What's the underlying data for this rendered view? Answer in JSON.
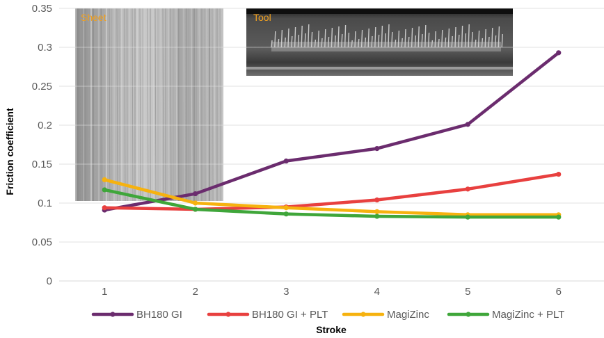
{
  "chart_data": {
    "type": "line",
    "title": "",
    "xlabel": "Stroke",
    "ylabel": "Friction coefficient",
    "x": [
      1,
      2,
      3,
      4,
      5,
      6
    ],
    "xlim": [
      0.5,
      6.5
    ],
    "ylim": [
      0,
      0.35
    ],
    "y_ticks": [
      "0",
      "0.05",
      "0.1",
      "0.15",
      "0.2",
      "0.25",
      "0.3",
      "0.35"
    ],
    "x_ticks": [
      "1",
      "2",
      "3",
      "4",
      "5",
      "6"
    ],
    "grid": "horizontal",
    "legend_position": "bottom",
    "series": [
      {
        "name": "BH180 GI",
        "color": "#6b2c6e",
        "values": [
          0.091,
          0.112,
          0.154,
          0.17,
          0.201,
          0.293
        ]
      },
      {
        "name": "BH180 GI + PLT",
        "color": "#e8403f",
        "values": [
          0.094,
          0.092,
          0.095,
          0.104,
          0.118,
          0.137
        ]
      },
      {
        "name": "MagiZinc",
        "color": "#f6b20f",
        "values": [
          0.13,
          0.1,
          0.094,
          0.089,
          0.085,
          0.085
        ]
      },
      {
        "name": "MagiZinc + PLT",
        "color": "#3fa63a",
        "values": [
          0.117,
          0.092,
          0.086,
          0.083,
          0.082,
          0.082
        ]
      }
    ],
    "insets": [
      {
        "label": "Sheet",
        "icon": "metal-sheet-photo"
      },
      {
        "label": "Tool",
        "icon": "worn-tool-photo"
      }
    ]
  }
}
